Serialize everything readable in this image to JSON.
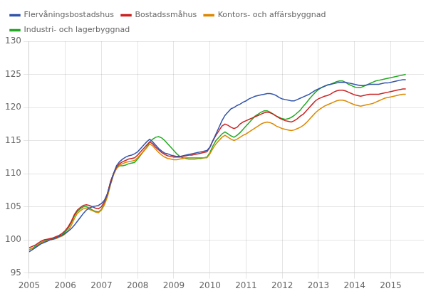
{
  "chart_data": {
    "type": "line",
    "x": [
      2005,
      2005.08333333333,
      2005.16666666666,
      2005.24999999999,
      2005.33333333332,
      2005.41666666665,
      2005.49999999998,
      2005.58333333331,
      2005.66666666664,
      2005.74999999997,
      2005.8333333333,
      2005.91666666663,
      2005.99999999996,
      2006.08333333329,
      2006.16666666662,
      2006.24999999995,
      2006.33333333328,
      2006.41666666661,
      2006.49999999994,
      2006.58333333327,
      2006.6666666666,
      2006.74999999993,
      2006.83333333326,
      2006.91666666659,
      2006.99999999992,
      2007.08333333325,
      2007.16666666658,
      2007.24999999991,
      2007.33333333324,
      2007.41666666657,
      2007.4999999999,
      2007.58333333323,
      2007.66666666656,
      2007.74999999989,
      2007.83333333322,
      2007.91666666655,
      2007.99999999988,
      2008.08333333321,
      2008.16666666654,
      2008.24999999987,
      2008.3333333332,
      2008.41666666653,
      2008.49999999986,
      2008.58333333319,
      2008.66666666652,
      2008.74999999985,
      2008.83333333318,
      2008.91666666651,
      2008.99999999984,
      2009.08333333317,
      2009.1666666665,
      2009.24999999983,
      2009.33333333316,
      2009.41666666649,
      2009.49999999982,
      2009.58333333315,
      2009.66666666648,
      2009.74999999981,
      2009.83333333314,
      2009.91666666647,
      2009.9999999998,
      2010.08333333313,
      2010.16666666646,
      2010.24999999979,
      2010.33333333312,
      2010.41666666645,
      2010.49999999978,
      2010.58333333311,
      2010.66666666644,
      2010.74999999977,
      2010.8333333331,
      2010.91666666643,
      2010.99999999976,
      2011.08333333309,
      2011.16666666642,
      2011.24999999975,
      2011.33333333308,
      2011.41666666641,
      2011.49999999974,
      2011.58333333307,
      2011.6666666664,
      2011.74999999973,
      2011.83333333306,
      2011.91666666639,
      2011.99999999972,
      2012.08333333305,
      2012.16666666638,
      2012.24999999971,
      2012.33333333304,
      2012.41666666637,
      2012.4999999997,
      2012.58333333303,
      2012.66666666636,
      2012.74999999969,
      2012.83333333302,
      2012.91666666635,
      2012.99999999968,
      2013.08333333301,
      2013.16666666634,
      2013.24999999967,
      2013.333333333,
      2013.41666666633,
      2013.49999999966,
      2013.58333333299,
      2013.66666666632,
      2013.74999999965,
      2013.83333333298,
      2013.91666666631,
      2013.99999999964,
      2014.08333333297,
      2014.1666666663,
      2014.24999999963,
      2014.33333333296,
      2014.41666666629,
      2014.49999999962,
      2014.58333333295,
      2014.66666666628,
      2014.74999999961,
      2014.83333333294,
      2014.91666666627,
      2014.9999999996,
      2015.08333333293,
      2015.16666666626,
      2015.24999999959,
      2015.33333333292,
      2015.41666666625
    ],
    "series": [
      {
        "name": "Flervåningsbostadshus",
        "color": "#3355aa",
        "values": [
          98.2,
          98.5,
          98.8,
          99.1,
          99.4,
          99.6,
          99.8,
          100.0,
          100.1,
          100.3,
          100.5,
          100.7,
          101.0,
          101.3,
          101.7,
          102.2,
          102.8,
          103.4,
          104.0,
          104.5,
          104.8,
          105.0,
          105.1,
          105.2,
          105.5,
          106.0,
          107.0,
          108.5,
          110.0,
          111.2,
          111.8,
          112.2,
          112.5,
          112.7,
          112.8,
          113.0,
          113.3,
          113.8,
          114.3,
          114.8,
          115.2,
          114.8,
          114.3,
          113.8,
          113.4,
          113.1,
          113.0,
          112.8,
          112.7,
          112.6,
          112.6,
          112.7,
          112.8,
          112.9,
          113.0,
          113.1,
          113.2,
          113.3,
          113.4,
          113.5,
          114.0,
          115.0,
          116.0,
          117.0,
          118.0,
          118.8,
          119.3,
          119.8,
          120.0,
          120.3,
          120.5,
          120.8,
          121.0,
          121.3,
          121.5,
          121.7,
          121.8,
          121.9,
          122.0,
          122.1,
          122.1,
          122.0,
          121.8,
          121.5,
          121.3,
          121.2,
          121.1,
          121.0,
          121.0,
          121.2,
          121.4,
          121.6,
          121.8,
          122.0,
          122.3,
          122.6,
          122.8,
          123.0,
          123.2,
          123.4,
          123.5,
          123.6,
          123.7,
          123.8,
          123.8,
          123.8,
          123.7,
          123.6,
          123.5,
          123.4,
          123.3,
          123.3,
          123.4,
          123.5,
          123.5,
          123.5,
          123.5,
          123.6,
          123.7,
          123.7,
          123.8,
          123.9,
          124.0,
          124.1,
          124.2,
          124.2
        ]
      },
      {
        "name": "Bostadssmåhus",
        "color": "#cc2222",
        "values": [
          98.8,
          99.0,
          99.2,
          99.5,
          99.8,
          100.0,
          100.1,
          100.2,
          100.3,
          100.5,
          100.7,
          101.0,
          101.4,
          102.0,
          102.8,
          103.8,
          104.5,
          104.9,
          105.2,
          105.3,
          105.2,
          105.0,
          104.8,
          104.7,
          105.0,
          105.8,
          107.0,
          108.8,
          110.0,
          111.0,
          111.5,
          111.8,
          112.0,
          112.2,
          112.3,
          112.4,
          112.8,
          113.3,
          113.8,
          114.3,
          114.8,
          114.5,
          114.0,
          113.6,
          113.2,
          112.9,
          112.7,
          112.6,
          112.5,
          112.5,
          112.5,
          112.6,
          112.7,
          112.8,
          112.8,
          112.9,
          113.0,
          113.1,
          113.2,
          113.3,
          114.0,
          115.0,
          115.8,
          116.5,
          117.2,
          117.5,
          117.3,
          117.0,
          116.8,
          117.0,
          117.5,
          117.8,
          118.0,
          118.2,
          118.4,
          118.6,
          118.8,
          119.0,
          119.2,
          119.3,
          119.2,
          119.0,
          118.7,
          118.4,
          118.2,
          118.0,
          117.9,
          117.8,
          118.0,
          118.3,
          118.7,
          119.0,
          119.5,
          120.0,
          120.5,
          121.0,
          121.3,
          121.5,
          121.7,
          121.8,
          122.0,
          122.3,
          122.5,
          122.6,
          122.6,
          122.5,
          122.3,
          122.1,
          121.9,
          121.8,
          121.7,
          121.8,
          121.9,
          122.0,
          122.0,
          122.0,
          122.0,
          122.1,
          122.2,
          122.3,
          122.4,
          122.5,
          122.6,
          122.7,
          122.8,
          122.8
        ]
      },
      {
        "name": "Kontors- och affärsbyggnad",
        "color": "#dd8800",
        "values": [
          98.5,
          98.7,
          98.9,
          99.2,
          99.5,
          99.7,
          99.9,
          100.0,
          100.1,
          100.2,
          100.4,
          100.6,
          100.9,
          101.4,
          102.2,
          103.2,
          104.0,
          104.4,
          104.7,
          104.8,
          104.6,
          104.4,
          104.2,
          104.1,
          104.5,
          105.3,
          106.5,
          108.3,
          109.8,
          110.8,
          111.3,
          111.5,
          111.7,
          111.8,
          111.9,
          112.0,
          112.4,
          112.9,
          113.4,
          113.9,
          114.5,
          114.2,
          113.7,
          113.2,
          112.8,
          112.5,
          112.3,
          112.2,
          112.1,
          112.1,
          112.2,
          112.3,
          112.4,
          112.4,
          112.4,
          112.4,
          112.4,
          112.4,
          112.4,
          112.4,
          113.0,
          113.8,
          114.5,
          115.0,
          115.5,
          115.8,
          115.5,
          115.2,
          115.0,
          115.2,
          115.5,
          115.8,
          116.0,
          116.3,
          116.6,
          116.9,
          117.2,
          117.5,
          117.7,
          117.8,
          117.7,
          117.5,
          117.2,
          117.0,
          116.8,
          116.7,
          116.6,
          116.5,
          116.6,
          116.8,
          117.0,
          117.3,
          117.7,
          118.2,
          118.7,
          119.2,
          119.6,
          119.9,
          120.2,
          120.4,
          120.6,
          120.8,
          121.0,
          121.1,
          121.1,
          121.0,
          120.8,
          120.6,
          120.4,
          120.3,
          120.2,
          120.3,
          120.4,
          120.5,
          120.6,
          120.8,
          121.0,
          121.2,
          121.4,
          121.5,
          121.6,
          121.7,
          121.8,
          121.9,
          122.0,
          122.0
        ]
      },
      {
        "name": "Industri- och lagerbyggnad",
        "color": "#22aa22",
        "values": [
          98.5,
          98.7,
          99.0,
          99.3,
          99.6,
          99.8,
          100.0,
          100.1,
          100.2,
          100.4,
          100.6,
          100.8,
          101.2,
          101.8,
          102.6,
          103.6,
          104.3,
          104.7,
          105.0,
          105.0,
          104.8,
          104.5,
          104.3,
          104.2,
          104.6,
          105.5,
          106.8,
          108.7,
          110.0,
          110.8,
          111.2,
          111.2,
          111.3,
          111.5,
          111.6,
          111.7,
          112.2,
          112.8,
          113.4,
          114.0,
          114.8,
          115.2,
          115.5,
          115.6,
          115.4,
          115.0,
          114.5,
          114.0,
          113.5,
          113.0,
          112.6,
          112.4,
          112.3,
          112.2,
          112.2,
          112.2,
          112.3,
          112.3,
          112.4,
          112.5,
          113.2,
          114.2,
          115.0,
          115.5,
          116.0,
          116.3,
          116.0,
          115.7,
          115.5,
          115.8,
          116.2,
          116.7,
          117.2,
          117.7,
          118.2,
          118.7,
          119.0,
          119.3,
          119.5,
          119.5,
          119.3,
          119.0,
          118.7,
          118.5,
          118.3,
          118.2,
          118.3,
          118.5,
          118.8,
          119.2,
          119.6,
          120.2,
          120.7,
          121.3,
          121.8,
          122.3,
          122.7,
          123.0,
          123.2,
          123.4,
          123.5,
          123.7,
          123.9,
          124.0,
          124.0,
          123.8,
          123.5,
          123.3,
          123.1,
          123.0,
          123.0,
          123.2,
          123.4,
          123.6,
          123.8,
          124.0,
          124.1,
          124.2,
          124.3,
          124.4,
          124.5,
          124.6,
          124.7,
          124.8,
          124.9,
          125.0
        ]
      }
    ],
    "xlim": [
      2005,
      2015.9166666666667
    ],
    "xticks": [
      2005,
      2006,
      2007,
      2008,
      2009,
      2010,
      2011,
      2012,
      2013,
      2014,
      2015
    ],
    "ylim": [
      95,
      130
    ],
    "yticks": [
      95,
      100,
      105,
      110,
      115,
      120,
      125,
      130
    ],
    "grid": true,
    "legend": "upper left"
  }
}
